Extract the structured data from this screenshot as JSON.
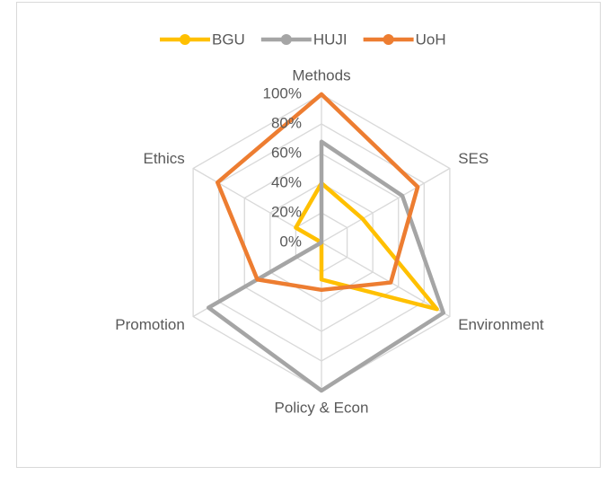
{
  "chart_data": {
    "type": "radar",
    "categories": [
      "Methods",
      "SES",
      "Environment",
      "Policy & Econ",
      "Promotion",
      "Ethics"
    ],
    "series": [
      {
        "name": "BGU",
        "color": "#FFC000",
        "values": [
          40,
          32,
          90,
          25,
          0,
          20
        ]
      },
      {
        "name": "HUJI",
        "color": "#A5A5A5",
        "values": [
          68,
          63,
          95,
          100,
          88,
          0
        ]
      },
      {
        "name": "UoH",
        "color": "#ED7D31",
        "values": [
          100,
          75,
          54,
          32,
          50,
          81
        ]
      }
    ],
    "rlim": [
      0,
      100
    ],
    "rticks": [
      {
        "value": 0,
        "label": "0%"
      },
      {
        "value": 20,
        "label": "20%"
      },
      {
        "value": 40,
        "label": "40%"
      },
      {
        "value": 60,
        "label": "60%"
      },
      {
        "value": 80,
        "label": "80%"
      },
      {
        "value": 100,
        "label": "100%"
      }
    ],
    "grid": true,
    "legend": "top"
  }
}
